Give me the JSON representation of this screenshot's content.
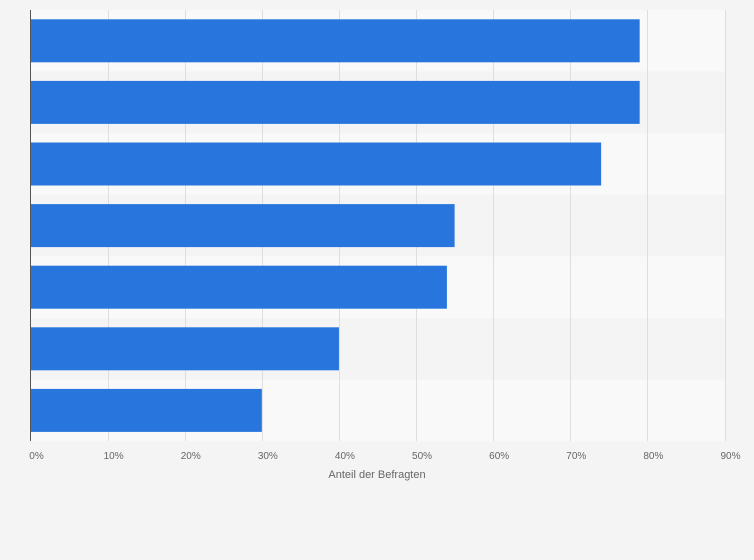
{
  "chart_data": {
    "type": "bar",
    "orientation": "horizontal",
    "categories": [
      "",
      "",
      "",
      "",
      "",
      "",
      ""
    ],
    "values": [
      79,
      79,
      74,
      55,
      54,
      40,
      30
    ],
    "xlim": [
      0,
      90
    ],
    "xticks": [
      0,
      10,
      20,
      30,
      40,
      50,
      60,
      70,
      80,
      90
    ],
    "xtick_labels": [
      "0%",
      "10%",
      "20%",
      "30%",
      "40%",
      "50%",
      "60%",
      "70%",
      "80%",
      "90%"
    ],
    "xlabel": "Anteil der Befragten",
    "ylabel": "",
    "title": "",
    "grid": "vertical",
    "bar_color": "#2876dd",
    "band_colors": [
      "#f9f9f9",
      "#f4f4f4"
    ],
    "gridline_color": "#dedede",
    "axis_color": "#555555"
  }
}
